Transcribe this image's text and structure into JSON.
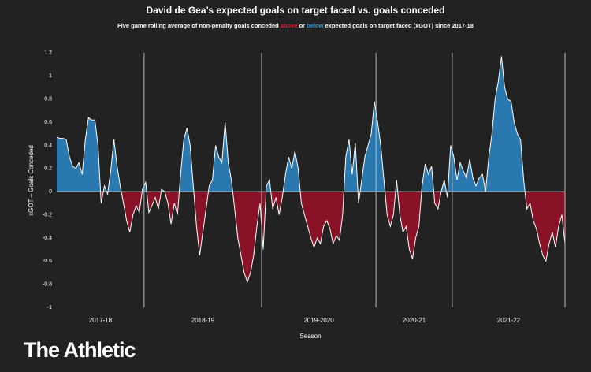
{
  "chart_data": {
    "type": "area",
    "title": "David de Gea’s expected goals on target faced vs. goals conceded",
    "subtitle": [
      "Five game rolling average of non-penalty goals conceded ",
      "above",
      " or ",
      "below",
      " expected goals on target faced (xGOT)  since 2017-18"
    ],
    "x_label": "Season",
    "y_label": "xGOT – Goals Conceded",
    "positive_color": "#2a78b0",
    "negative_color": "#8a1226",
    "line_color": "#ffffff",
    "highlight_colors": [
      "#d7192b",
      "#3a96d4"
    ],
    "ylim": [
      -1,
      1.2
    ],
    "yticks": [
      1.2,
      1,
      0.8,
      0.6,
      0.4,
      0.2,
      0,
      -0.2,
      -0.4,
      -0.6,
      -0.8,
      -1
    ],
    "seasons": [
      {
        "name": "2017-18",
        "values": [
          0.47,
          0.46,
          0.46,
          0.45,
          0.3,
          0.22,
          0.2,
          0.25,
          0.15,
          0.45,
          0.64,
          0.62,
          0.62,
          0.4,
          -0.1,
          0.05,
          -0.02,
          0.18,
          0.45,
          0.22,
          0.05,
          -0.1,
          -0.25,
          -0.35,
          -0.2,
          -0.12,
          -0.18,
          0.02
        ]
      },
      {
        "name": "2018-19",
        "values": [
          0.08,
          -0.18,
          -0.12,
          -0.05,
          -0.15,
          0.02,
          0,
          -0.1,
          -0.28,
          -0.1,
          -0.2,
          0.15,
          0.45,
          0.55,
          0.4,
          0.05,
          -0.3,
          -0.55,
          -0.35,
          -0.15,
          0.05,
          0.1,
          0.4,
          0.3,
          0.25,
          0.6,
          0.25,
          0.1,
          -0.15,
          -0.4,
          -0.55,
          -0.7,
          -0.78,
          -0.7,
          -0.55,
          -0.3,
          -0.1
        ]
      },
      {
        "name": "2019-2020",
        "values": [
          -0.5,
          0.05,
          0.1,
          -0.15,
          -0.05,
          -0.2,
          -0.05,
          0.15,
          0.3,
          0.2,
          0.35,
          0.2,
          -0.1,
          -0.2,
          -0.3,
          -0.4,
          -0.48,
          -0.4,
          -0.45,
          -0.3,
          -0.25,
          -0.32,
          -0.45,
          -0.38,
          -0.42,
          -0.2,
          0.3,
          0.45,
          0.15,
          0.42,
          -0.1,
          0.1,
          0.3,
          0.4,
          0.5,
          0.78
        ]
      },
      {
        "name": "2020-21",
        "values": [
          0.6,
          0.4,
          0.1,
          -0.2,
          -0.3,
          -0.2,
          0.1,
          -0.2,
          -0.35,
          -0.3,
          -0.5,
          -0.58,
          -0.4,
          -0.3,
          0.05,
          0.24,
          0.15,
          0.22,
          -0.1,
          -0.15,
          0,
          0.1,
          -0.05,
          0.4
        ]
      },
      {
        "name": "2021-22",
        "values": [
          0.3,
          0.1,
          0.25,
          0.18,
          0.12,
          0.28,
          0.12,
          0.05,
          0.12,
          0.15,
          0,
          0.3,
          0.5,
          0.8,
          0.95,
          1.17,
          0.9,
          0.8,
          0.78,
          0.6,
          0.5,
          0.45,
          0.1,
          -0.15,
          -0.1,
          -0.25,
          -0.32,
          -0.45,
          -0.55,
          -0.6,
          -0.45,
          -0.35,
          -0.48,
          -0.3,
          -0.2,
          -0.45
        ]
      }
    ]
  },
  "logo": "The Athletic"
}
